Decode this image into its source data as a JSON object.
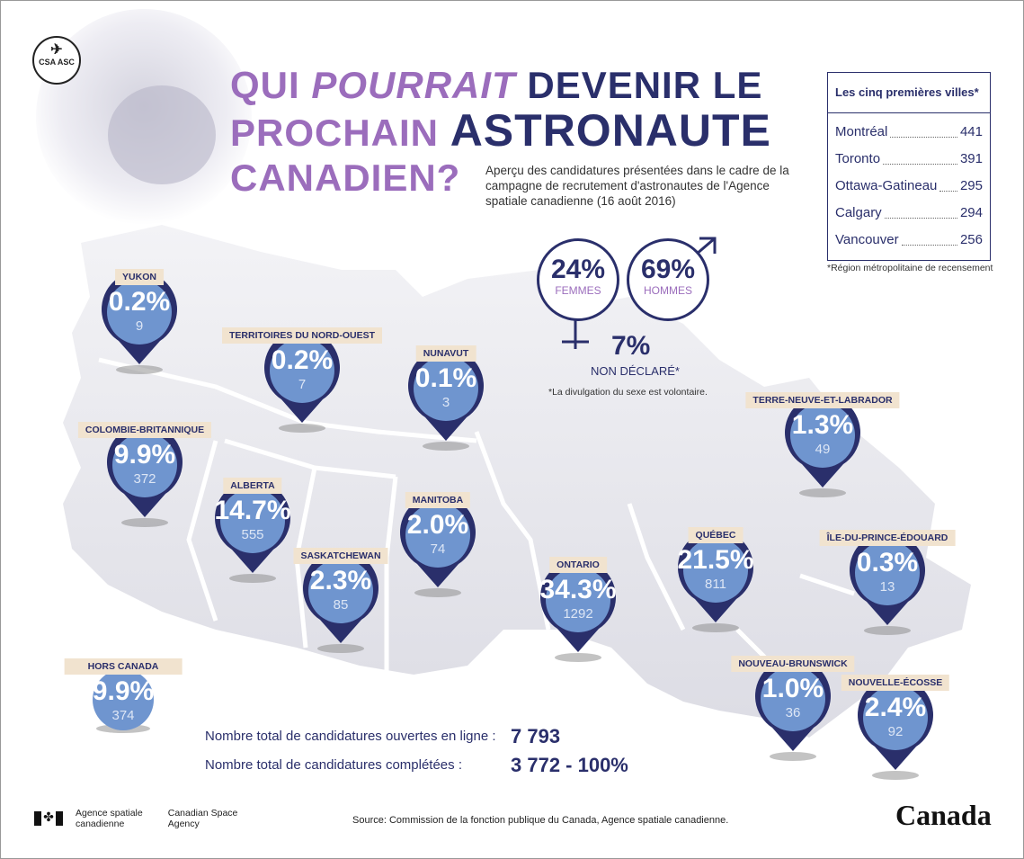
{
  "logo": {
    "text": "CSA ASC"
  },
  "title": {
    "line1_a": "QUI ",
    "line1_b": "POURRAIT",
    "line1_c": " DEVENIR LE",
    "line2_a": "PROCHAIN ",
    "line2_b": "ASTRONAUTE",
    "line3": "CANADIEN?"
  },
  "subtitle": "Aperçu des candidatures présentées dans le cadre de la campagne de recrutement d'astronautes de l'Agence spatiale canadienne (16 août 2016)",
  "cities": {
    "header": "Les cinq premières villes*",
    "rows": [
      {
        "name": "Montréal",
        "value": "441"
      },
      {
        "name": "Toronto",
        "value": "391"
      },
      {
        "name": "Ottawa-Gatineau",
        "value": "295"
      },
      {
        "name": "Calgary",
        "value": "294"
      },
      {
        "name": "Vancouver",
        "value": "256"
      }
    ],
    "note": "*Région métropolitaine de recensement"
  },
  "gender": {
    "women_pct": "24%",
    "women_label": "FEMMES",
    "men_pct": "69%",
    "men_label": "HOMMES",
    "undeclared_pct": "7%",
    "undeclared_label": "NON DÉCLARÉ*",
    "note": "*La divulgation du sexe est volontaire."
  },
  "regions": [
    {
      "name": "YUKON",
      "pct": "0.2%",
      "count": "9"
    },
    {
      "name": "TERRITOIRES DU NORD-OUEST",
      "pct": "0.2%",
      "count": "7"
    },
    {
      "name": "NUNAVUT",
      "pct": "0.1%",
      "count": "3"
    },
    {
      "name": "COLOMBIE-BRITANNIQUE",
      "pct": "9.9%",
      "count": "372"
    },
    {
      "name": "ALBERTA",
      "pct": "14.7%",
      "count": "555"
    },
    {
      "name": "SASKATCHEWAN",
      "pct": "2.3%",
      "count": "85"
    },
    {
      "name": "MANITOBA",
      "pct": "2.0%",
      "count": "74"
    },
    {
      "name": "ONTARIO",
      "pct": "34.3%",
      "count": "1292"
    },
    {
      "name": "QUÉBEC",
      "pct": "21.5%",
      "count": "811"
    },
    {
      "name": "TERRE-NEUVE-ET-LABRADOR",
      "pct": "1.3%",
      "count": "49"
    },
    {
      "name": "ÎLE-DU-PRINCE-ÉDOUARD",
      "pct": "0.3%",
      "count": "13"
    },
    {
      "name": "NOUVEAU-BRUNSWICK",
      "pct": "1.0%",
      "count": "36"
    },
    {
      "name": "NOUVELLE-ÉCOSSE",
      "pct": "2.4%",
      "count": "92"
    },
    {
      "name": "HORS CANADA",
      "pct": "9.9%",
      "count": "374"
    }
  ],
  "totals": {
    "online_label": "Nombre total de candidatures ouvertes en ligne :",
    "online_value": "7 793",
    "completed_label": "Nombre total de candidatures complétées :",
    "completed_value": "3 772 - 100%"
  },
  "footer": {
    "agency_fr_1": "Agence spatiale",
    "agency_fr_2": "canadienne",
    "agency_en_1": "Canadian Space",
    "agency_en_2": "Agency",
    "source": "Source: Commission de la fonction publique du Canada, Agence spatiale canadienne.",
    "wordmark": "Canada"
  },
  "colors": {
    "navy": "#2a2f6b",
    "purple": "#9b6dbc",
    "pin_fill": "#6f95cf",
    "label_bg": "#f1e3cf"
  }
}
